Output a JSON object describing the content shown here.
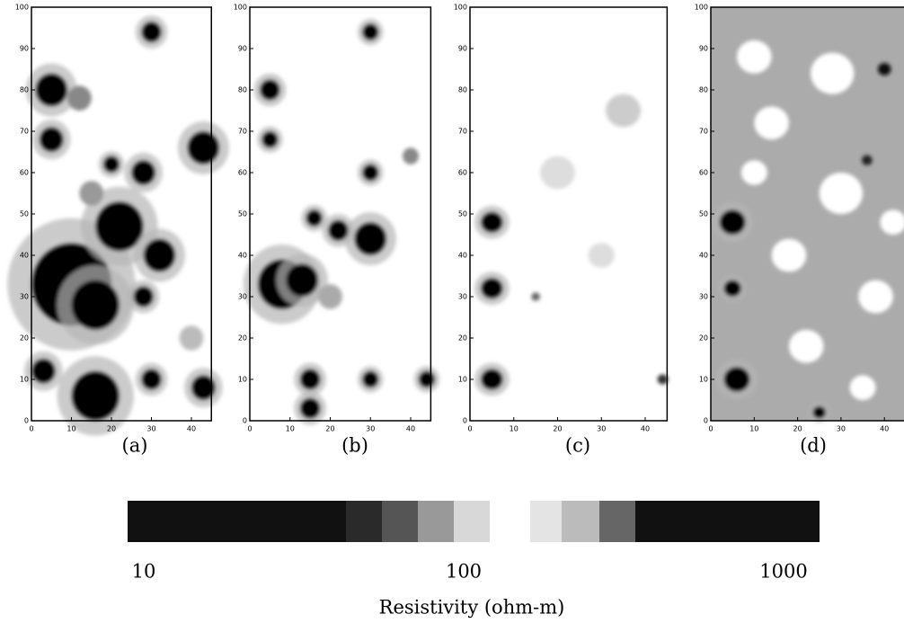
{
  "panels": [
    {
      "label": "(a)",
      "xticks": [
        0,
        10,
        20,
        30,
        40
      ],
      "yticks": [
        0,
        10,
        20,
        30,
        40,
        50,
        60,
        70,
        80,
        90,
        100
      ]
    },
    {
      "label": "(b)",
      "xticks": [
        0,
        10,
        20,
        30,
        40
      ],
      "yticks": [
        0,
        10,
        20,
        30,
        40,
        50,
        60,
        70,
        80,
        90,
        100
      ]
    },
    {
      "label": "(c)",
      "xticks": [
        0,
        10,
        20,
        30,
        40
      ],
      "yticks": [
        0,
        10,
        20,
        30,
        40,
        50,
        60,
        70,
        80,
        90,
        100
      ]
    },
    {
      "label": "(d)",
      "xticks": [
        0,
        10,
        20,
        30,
        40
      ],
      "yticks": [
        0,
        10,
        20,
        30,
        40,
        50,
        60,
        70,
        80,
        90,
        100
      ]
    }
  ],
  "colorbar": {
    "ticks": [
      10,
      100,
      1000
    ],
    "title": "Resistivity (ohm-m)"
  }
}
